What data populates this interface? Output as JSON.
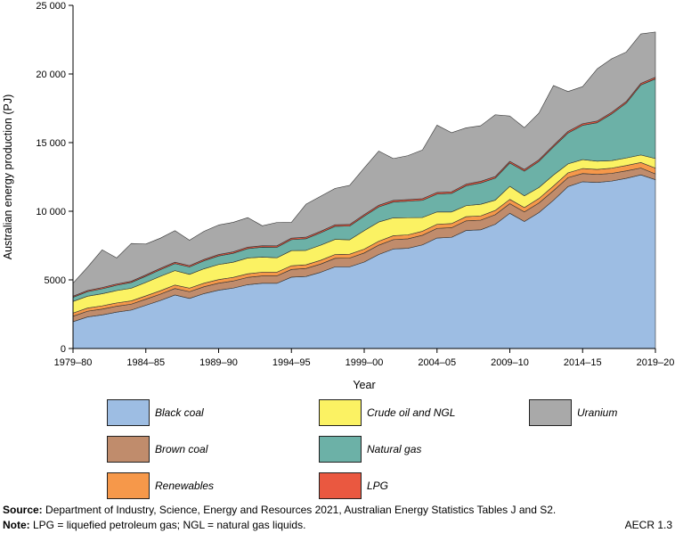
{
  "chart_data": {
    "type": "area",
    "stacked": true,
    "xlabel": "Year",
    "ylabel": "Australian energy production (PJ)",
    "ylim": [
      0,
      25000
    ],
    "yticks": [
      0,
      5000,
      10000,
      15000,
      20000,
      25000
    ],
    "ytick_labels": [
      "0",
      "5000",
      "10 000",
      "15 000",
      "20 000",
      "25 000"
    ],
    "xlim": [
      1979,
      2019
    ],
    "xticks": [
      1979,
      1984,
      1989,
      1994,
      1999,
      2004,
      2009,
      2014,
      2019
    ],
    "xtick_labels": [
      "1979–80",
      "1984–85",
      "1989–90",
      "1994–95",
      "1999–00",
      "2004–05",
      "2009–10",
      "2014–15",
      "2019–20"
    ],
    "x": [
      1979,
      1980,
      1981,
      1982,
      1983,
      1984,
      1985,
      1986,
      1987,
      1988,
      1989,
      1990,
      1991,
      1992,
      1993,
      1994,
      1995,
      1996,
      1997,
      1998,
      1999,
      2000,
      2001,
      2002,
      2003,
      2004,
      2005,
      2006,
      2007,
      2008,
      2009,
      2010,
      2011,
      2012,
      2013,
      2014,
      2015,
      2016,
      2017,
      2018,
      2019
    ],
    "series": [
      {
        "name": "Black coal",
        "color": "#9dbde3",
        "values": [
          1950,
          2300,
          2450,
          2650,
          2800,
          3150,
          3500,
          3900,
          3650,
          4000,
          4250,
          4400,
          4650,
          4750,
          4750,
          5200,
          5250,
          5550,
          5950,
          5950,
          6300,
          6850,
          7250,
          7300,
          7550,
          8050,
          8100,
          8600,
          8650,
          9050,
          9850,
          9250,
          9900,
          10800,
          11800,
          12150,
          12100,
          12200,
          12400,
          12650,
          12300
        ]
      },
      {
        "name": "Brown coal",
        "color": "#c08c6c",
        "values": [
          400,
          420,
          420,
          430,
          430,
          440,
          460,
          470,
          490,
          500,
          510,
          520,
          530,
          540,
          540,
          560,
          580,
          600,
          620,
          640,
          660,
          680,
          680,
          690,
          700,
          700,
          700,
          700,
          700,
          700,
          700,
          700,
          700,
          700,
          650,
          600,
          580,
          560,
          540,
          500,
          420
        ]
      },
      {
        "name": "Renewables",
        "color": "#f6984a",
        "values": [
          230,
          230,
          240,
          240,
          240,
          245,
          250,
          255,
          260,
          260,
          260,
          265,
          265,
          270,
          270,
          270,
          270,
          275,
          280,
          280,
          280,
          285,
          290,
          290,
          295,
          300,
          300,
          305,
          310,
          310,
          315,
          320,
          330,
          340,
          350,
          360,
          370,
          380,
          390,
          400,
          420
        ]
      },
      {
        "name": "Crude oil and NGL",
        "color": "#fbf263",
        "values": [
          850,
          860,
          880,
          900,
          920,
          980,
          1050,
          1050,
          1000,
          1050,
          1100,
          1100,
          1150,
          1100,
          1050,
          1100,
          1050,
          1100,
          1100,
          1050,
          1350,
          1400,
          1300,
          1250,
          1000,
          900,
          850,
          800,
          850,
          750,
          950,
          850,
          800,
          800,
          650,
          650,
          600,
          550,
          550,
          550,
          700
        ]
      },
      {
        "name": "Natural gas",
        "color": "#6cb1a7",
        "values": [
          300,
          330,
          360,
          390,
          420,
          450,
          480,
          510,
          540,
          580,
          620,
          650,
          680,
          720,
          760,
          800,
          850,
          900,
          950,
          1000,
          1050,
          1100,
          1150,
          1200,
          1250,
          1300,
          1350,
          1450,
          1550,
          1600,
          1700,
          1800,
          1900,
          2050,
          2250,
          2500,
          2800,
          3400,
          4000,
          5100,
          5800
        ]
      },
      {
        "name": "LPG",
        "color": "#ea5840",
        "values": [
          80,
          85,
          90,
          90,
          90,
          95,
          100,
          100,
          100,
          100,
          105,
          105,
          110,
          110,
          110,
          110,
          110,
          110,
          115,
          115,
          115,
          120,
          120,
          120,
          120,
          120,
          120,
          120,
          120,
          120,
          120,
          120,
          120,
          120,
          120,
          120,
          120,
          120,
          120,
          120,
          120
        ]
      },
      {
        "name": "Uranium",
        "color": "#a9a9a9",
        "values": [
          950,
          1700,
          2750,
          1900,
          2750,
          2250,
          2200,
          2300,
          1850,
          2050,
          2150,
          2150,
          2150,
          1450,
          1700,
          1150,
          2400,
          2550,
          2650,
          2850,
          3400,
          3950,
          3050,
          3200,
          3550,
          4900,
          4300,
          4100,
          4050,
          4500,
          3300,
          3050,
          3400,
          4350,
          2900,
          2700,
          3800,
          3900,
          3600,
          3600,
          3300
        ]
      }
    ],
    "legend_position": "bottom",
    "grid": false
  },
  "legend_columns": [
    [
      "Black coal",
      "Brown coal",
      "Renewables"
    ],
    [
      "Crude oil and NGL",
      "Natural gas",
      "LPG"
    ],
    [
      "Uranium"
    ]
  ],
  "footer": {
    "source_label": "Source:",
    "source_text": " Department of Industry, Science, Energy and Resources 2021, Australian Energy Statistics Tables J and S2.",
    "note_label": "Note:",
    "note_text": " LPG = liquefied petroleum gas; NGL = natural gas liquids.",
    "figure_id": "AECR 1.3"
  }
}
